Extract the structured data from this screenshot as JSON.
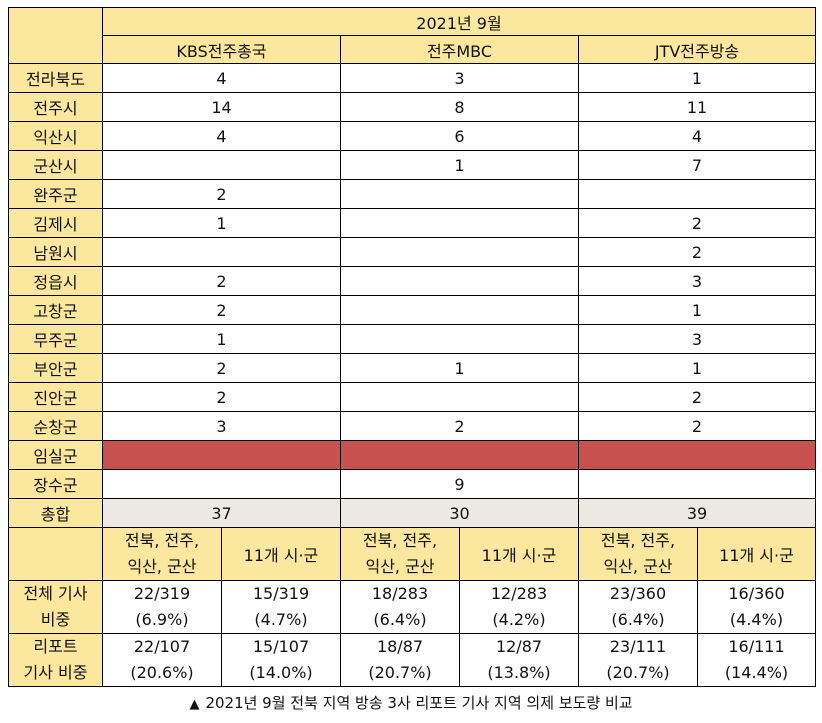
{
  "period_label": "2021년 9월",
  "broadcasters": [
    "KBS전주총국",
    "전주MBC",
    "JTV전주방송"
  ],
  "regions": [
    {
      "name": "전라북도",
      "values": [
        "4",
        "3",
        "1"
      ]
    },
    {
      "name": "전주시",
      "values": [
        "14",
        "8",
        "11"
      ]
    },
    {
      "name": "익산시",
      "values": [
        "4",
        "6",
        "4"
      ]
    },
    {
      "name": "군산시",
      "values": [
        "",
        "1",
        "7"
      ]
    },
    {
      "name": "완주군",
      "values": [
        "2",
        "",
        ""
      ]
    },
    {
      "name": "김제시",
      "values": [
        "1",
        "",
        "2"
      ]
    },
    {
      "name": "남원시",
      "values": [
        "",
        "",
        "2"
      ]
    },
    {
      "name": "정읍시",
      "values": [
        "2",
        "",
        "3"
      ]
    },
    {
      "name": "고창군",
      "values": [
        "2",
        "",
        "1"
      ]
    },
    {
      "name": "무주군",
      "values": [
        "1",
        "",
        "3"
      ]
    },
    {
      "name": "부안군",
      "values": [
        "2",
        "1",
        "1"
      ]
    },
    {
      "name": "진안군",
      "values": [
        "2",
        "",
        "2"
      ]
    },
    {
      "name": "순창군",
      "values": [
        "3",
        "2",
        "2"
      ]
    },
    {
      "name": "임실군",
      "values": [
        "",
        "",
        ""
      ]
    },
    {
      "name": "장수군",
      "values": [
        "",
        "9",
        ""
      ]
    }
  ],
  "highlight_color": "#c6514f",
  "total": {
    "label": "총합",
    "values": [
      "37",
      "30",
      "39"
    ]
  },
  "sub_headers": {
    "group_a": [
      "전북, 전주,",
      "익산, 군산"
    ],
    "group_b": "11개 시·군"
  },
  "ratio_rows": [
    {
      "label": [
        "전체 기사",
        "비중"
      ],
      "cells": [
        {
          "frac": "22/319",
          "pct": "(6.9%)"
        },
        {
          "frac": "15/319",
          "pct": "(4.7%)"
        },
        {
          "frac": "18/283",
          "pct": "(6.4%)"
        },
        {
          "frac": "12/283",
          "pct": "(4.2%)"
        },
        {
          "frac": "23/360",
          "pct": "(6.4%)"
        },
        {
          "frac": "16/360",
          "pct": "(4.4%)"
        }
      ]
    },
    {
      "label": [
        "리포트",
        "기사 비중"
      ],
      "cells": [
        {
          "frac": "22/107",
          "pct": "(20.6%)"
        },
        {
          "frac": "15/107",
          "pct": "(14.0%)"
        },
        {
          "frac": "18/87",
          "pct": "(20.7%)"
        },
        {
          "frac": "12/87",
          "pct": "(13.8%)"
        },
        {
          "frac": "23/111",
          "pct": "(20.7%)"
        },
        {
          "frac": "16/111",
          "pct": "(14.4%)"
        }
      ]
    }
  ],
  "caption": "2021년 9월 전북 지역 방송 3사 리포트 기사 지역 의제 보도량 비교",
  "caption_icon": "▲"
}
